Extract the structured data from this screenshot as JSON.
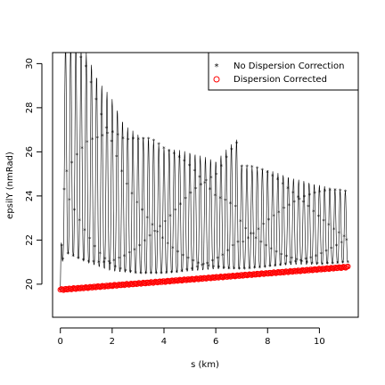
{
  "chart_data": {
    "type": "scatter",
    "title": "",
    "xlabel": "s (km)",
    "ylabel": "epsilY (nmRad)",
    "xlim": [
      -0.3,
      11.5
    ],
    "ylim": [
      18.5,
      30.5
    ],
    "x_ticks": [
      0,
      2,
      4,
      6,
      8,
      10
    ],
    "y_ticks": [
      20,
      22,
      24,
      26,
      28,
      30
    ],
    "x_tick_labels": [
      "0",
      "2",
      "4",
      "6",
      "8",
      "10"
    ],
    "y_tick_labels": [
      "20",
      "22",
      "24",
      "26",
      "28",
      "30"
    ],
    "grid": false,
    "legend": {
      "position": "top-right",
      "entries": [
        {
          "label": "No Dispersion Correction",
          "marker": "star",
          "color": "#000000"
        },
        {
          "label": "Dispersion Corrected",
          "marker": "circle",
          "color": "#ff0000"
        }
      ]
    },
    "series": [
      {
        "name": "No Dispersion Correction",
        "marker": "star",
        "color": "#000000",
        "description_of_pattern": "",
        "x_range": [
          0,
          11.1
        ],
        "oscillation_period_km": 0.2,
        "upper_envelope": [
          [
            0.1,
            31.0
          ],
          [
            0.5,
            31.0
          ],
          [
            1.0,
            30.5
          ],
          [
            1.5,
            29.2
          ],
          [
            2.0,
            28.4
          ],
          [
            2.5,
            27.2
          ],
          [
            3.0,
            26.8
          ],
          [
            3.5,
            26.6
          ],
          [
            4.0,
            26.2
          ],
          [
            5.0,
            26.0
          ],
          [
            6.0,
            25.6
          ],
          [
            6.8,
            26.6
          ],
          [
            7.0,
            25.4
          ],
          [
            8.0,
            25.2
          ],
          [
            9.0,
            24.8
          ],
          [
            10.0,
            24.5
          ],
          [
            11.1,
            24.2
          ]
        ],
        "lower_envelope": [
          [
            0.1,
            21.5
          ],
          [
            1.0,
            21.0
          ],
          [
            2.0,
            20.6
          ],
          [
            3.0,
            20.5
          ],
          [
            4.0,
            20.5
          ],
          [
            5.0,
            20.6
          ],
          [
            6.0,
            20.7
          ],
          [
            7.0,
            20.7
          ],
          [
            8.0,
            20.8
          ],
          [
            9.0,
            20.9
          ],
          [
            10.0,
            20.9
          ],
          [
            11.1,
            21.0
          ]
        ]
      },
      {
        "name": "Dispersion Corrected",
        "marker": "circle",
        "color": "#ff0000",
        "x_range": [
          0,
          11.1
        ],
        "y_start": 19.75,
        "y_end": 20.78
      }
    ]
  }
}
